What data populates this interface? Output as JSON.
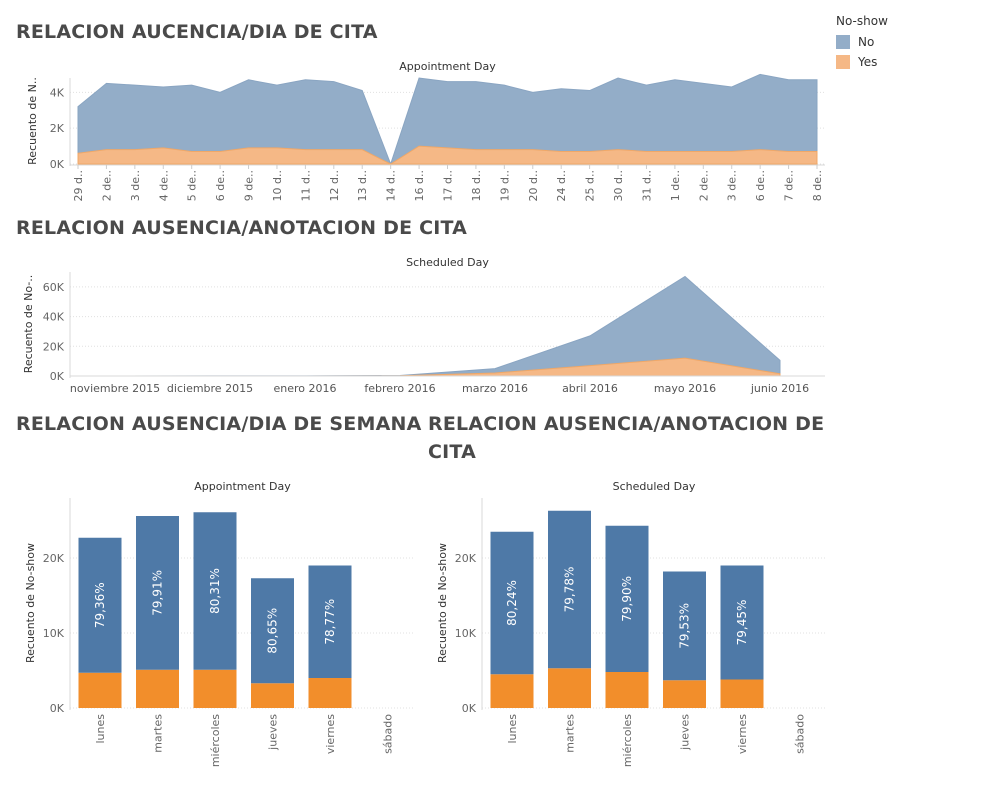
{
  "colors": {
    "area_no": "#93adc8",
    "area_yes": "#f5b886",
    "bar_no": "#4e79a7",
    "bar_yes": "#f28e2b",
    "grid": "#e0e0e0",
    "axis_text": "#666666"
  },
  "legend": {
    "title": "No-show",
    "items": [
      {
        "label": "No",
        "color": "#93adc8"
      },
      {
        "label": "Yes",
        "color": "#f5b886"
      }
    ]
  },
  "titles": {
    "t1": "RELACION AUCENCIA/DIA DE CITA",
    "t2": "RELACION AUSENCIA/ANOTACION DE CITA",
    "t3": "RELACION AUSENCIA/DIA DE SEMANA",
    "t4_line1": "RELACION AUSENCIA/ANOTACION DE",
    "t4_line2": "CITA"
  },
  "chart_data": [
    {
      "type": "area",
      "id": "c1",
      "title": "Appointment Day",
      "ylabel": "Recuento de N..",
      "categories": [
        "29 d..",
        "2 de..",
        "3 de..",
        "4 de..",
        "5 de..",
        "6 de..",
        "9 de..",
        "10 d..",
        "11 d..",
        "12 d..",
        "13 d..",
        "14 d..",
        "16 d..",
        "17 d..",
        "18 d..",
        "19 d..",
        "20 d..",
        "24 d..",
        "25 d..",
        "30 d..",
        "31 d..",
        "1 de..",
        "2 de..",
        "3 de..",
        "6 de..",
        "7 de..",
        "8 de.."
      ],
      "x_tick_labels": [
        "29 d..",
        "2 de..",
        "3 de..",
        "4 de..",
        "5 de..",
        "6 de..",
        "9 de..",
        "10 d..",
        "11 d..",
        "12 d..",
        "13 d..",
        "14 d..",
        "16 d..",
        "17 d..",
        "18 d..",
        "19 d..",
        "20 d..",
        "24 d..",
        "25 d..",
        "30 d..",
        "31 d..",
        "1 de..",
        "2 de..",
        "3 de..",
        "6 de..",
        "7 de..",
        "8 de.."
      ],
      "series": [
        {
          "name": "No",
          "values": [
            2600,
            3700,
            3600,
            3400,
            3700,
            3300,
            3800,
            3500,
            3900,
            3800,
            3300,
            0,
            3800,
            3700,
            3800,
            3600,
            3200,
            3500,
            3400,
            4000,
            3700,
            4000,
            3800,
            3600,
            4200,
            4000,
            4000
          ]
        },
        {
          "name": "Yes",
          "values": [
            600,
            800,
            800,
            900,
            700,
            700,
            900,
            900,
            800,
            800,
            800,
            0,
            1000,
            900,
            800,
            800,
            800,
            700,
            700,
            800,
            700,
            700,
            700,
            700,
            800,
            700,
            700
          ]
        }
      ],
      "stacked": true,
      "yticks": [
        0,
        2000,
        4000
      ],
      "ytick_labels": [
        "0K",
        "2K",
        "4K"
      ],
      "ylim": [
        0,
        4800
      ],
      "grid": true
    },
    {
      "type": "area",
      "id": "c2",
      "title": "Scheduled Day",
      "ylabel": "Recuento de No-..",
      "categories": [
        "noviembre 2015",
        "diciembre 2015",
        "enero 2016",
        "febrero 2016",
        "marzo 2016",
        "abril 2016",
        "mayo 2016",
        "junio 2016"
      ],
      "x_tick_labels": [
        "noviembre 2015",
        "diciembre 2015",
        "enero 2016",
        "febrero 2016",
        "marzo 2016",
        "abril 2016",
        "mayo 2016",
        "junio 2016"
      ],
      "series": [
        {
          "name": "No",
          "values": [
            20,
            50,
            50,
            200,
            3000,
            20000,
            55000,
            9000
          ]
        },
        {
          "name": "Yes",
          "values": [
            10,
            20,
            20,
            150,
            2000,
            7000,
            12000,
            1500
          ]
        }
      ],
      "stacked": true,
      "yticks": [
        0,
        20000,
        40000,
        60000
      ],
      "ytick_labels": [
        "0K",
        "20K",
        "40K",
        "60K"
      ],
      "ylim": [
        0,
        70000
      ],
      "grid": true
    },
    {
      "type": "bar",
      "id": "c3",
      "title": "Appointment Day",
      "ylabel": "Recuento de No-show",
      "categories": [
        "lunes",
        "martes",
        "miércoles",
        "jueves",
        "viernes",
        "sábado"
      ],
      "series": [
        {
          "name": "Yes",
          "values": [
            4700,
            5100,
            5100,
            3300,
            4000,
            0
          ]
        },
        {
          "name": "No",
          "values": [
            18000,
            20500,
            21000,
            14000,
            15000,
            0
          ]
        }
      ],
      "bar_labels": [
        "79,36%",
        "79,91%",
        "80,31%",
        "80,65%",
        "78,77%",
        ""
      ],
      "stacked": true,
      "yticks": [
        0,
        10000,
        20000
      ],
      "ytick_labels": [
        "0K",
        "10K",
        "20K"
      ],
      "ylim": [
        0,
        28000
      ],
      "grid": true
    },
    {
      "type": "bar",
      "id": "c4",
      "title": "Scheduled Day",
      "ylabel": "Recuento de No-show",
      "categories": [
        "lunes",
        "martes",
        "miércoles",
        "jueves",
        "viernes",
        "sábado"
      ],
      "series": [
        {
          "name": "Yes",
          "values": [
            4500,
            5300,
            4800,
            3700,
            3800,
            0
          ]
        },
        {
          "name": "No",
          "values": [
            19000,
            21000,
            19500,
            14500,
            15200,
            0
          ]
        }
      ],
      "bar_labels": [
        "80,24%",
        "79,78%",
        "79,90%",
        "79,53%",
        "79,45%",
        ""
      ],
      "stacked": true,
      "yticks": [
        0,
        10000,
        20000
      ],
      "ytick_labels": [
        "0K",
        "10K",
        "20K"
      ],
      "ylim": [
        0,
        28000
      ],
      "grid": true
    }
  ]
}
